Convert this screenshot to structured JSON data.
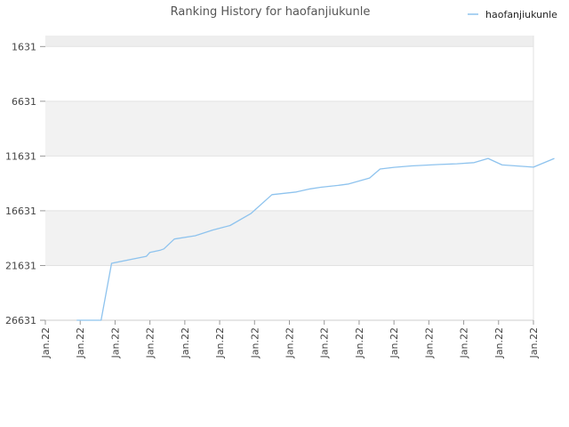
{
  "chart_data": {
    "type": "line",
    "title": "Ranking History for haofanjiukunle",
    "xlabel": "",
    "ylabel": "",
    "y_inverted": true,
    "ylim": [
      26631,
      631
    ],
    "y_ticks": [
      "1631",
      "6631",
      "11631",
      "16631",
      "21631",
      "26631"
    ],
    "y_tick_values": [
      1631,
      6631,
      11631,
      16631,
      21631,
      26631
    ],
    "x_tick_labels": [
      "Jan.22",
      "Jan.22",
      "Jan.22",
      "Jan.22",
      "Jan.22",
      "Jan.22",
      "Jan.22",
      "Jan.22",
      "Jan.22",
      "Jan.22",
      "Jan.22",
      "Jan.22",
      "Jan.22",
      "Jan.22",
      "Jan.22"
    ],
    "legend": {
      "placement": "top-right",
      "color": "#8ec3ee"
    },
    "grid": true,
    "band_colors": [
      "#eeeeee",
      "#f2f2f2"
    ],
    "series": [
      {
        "name": "haofanjiukunle",
        "color": "#8ec3ee",
        "x": [
          0.9,
          1.6,
          1.9,
          2.9,
          3.0,
          3.3,
          3.4,
          3.7,
          4.3,
          4.8,
          5.3,
          5.9,
          6.5,
          7.2,
          7.6,
          7.9,
          8.4,
          8.7,
          9.3,
          9.6,
          10.0,
          10.5,
          11.3,
          11.8,
          12.3,
          12.7,
          13.1,
          14.0,
          14.6
        ],
        "values": [
          26631,
          26631,
          21431,
          20791,
          20431,
          20231,
          20111,
          19211,
          18911,
          18391,
          17981,
          16871,
          15161,
          14911,
          14631,
          14481,
          14311,
          14181,
          13641,
          12821,
          12661,
          12531,
          12401,
          12341,
          12231,
          11851,
          12441,
          12651,
          11851
        ]
      }
    ]
  }
}
